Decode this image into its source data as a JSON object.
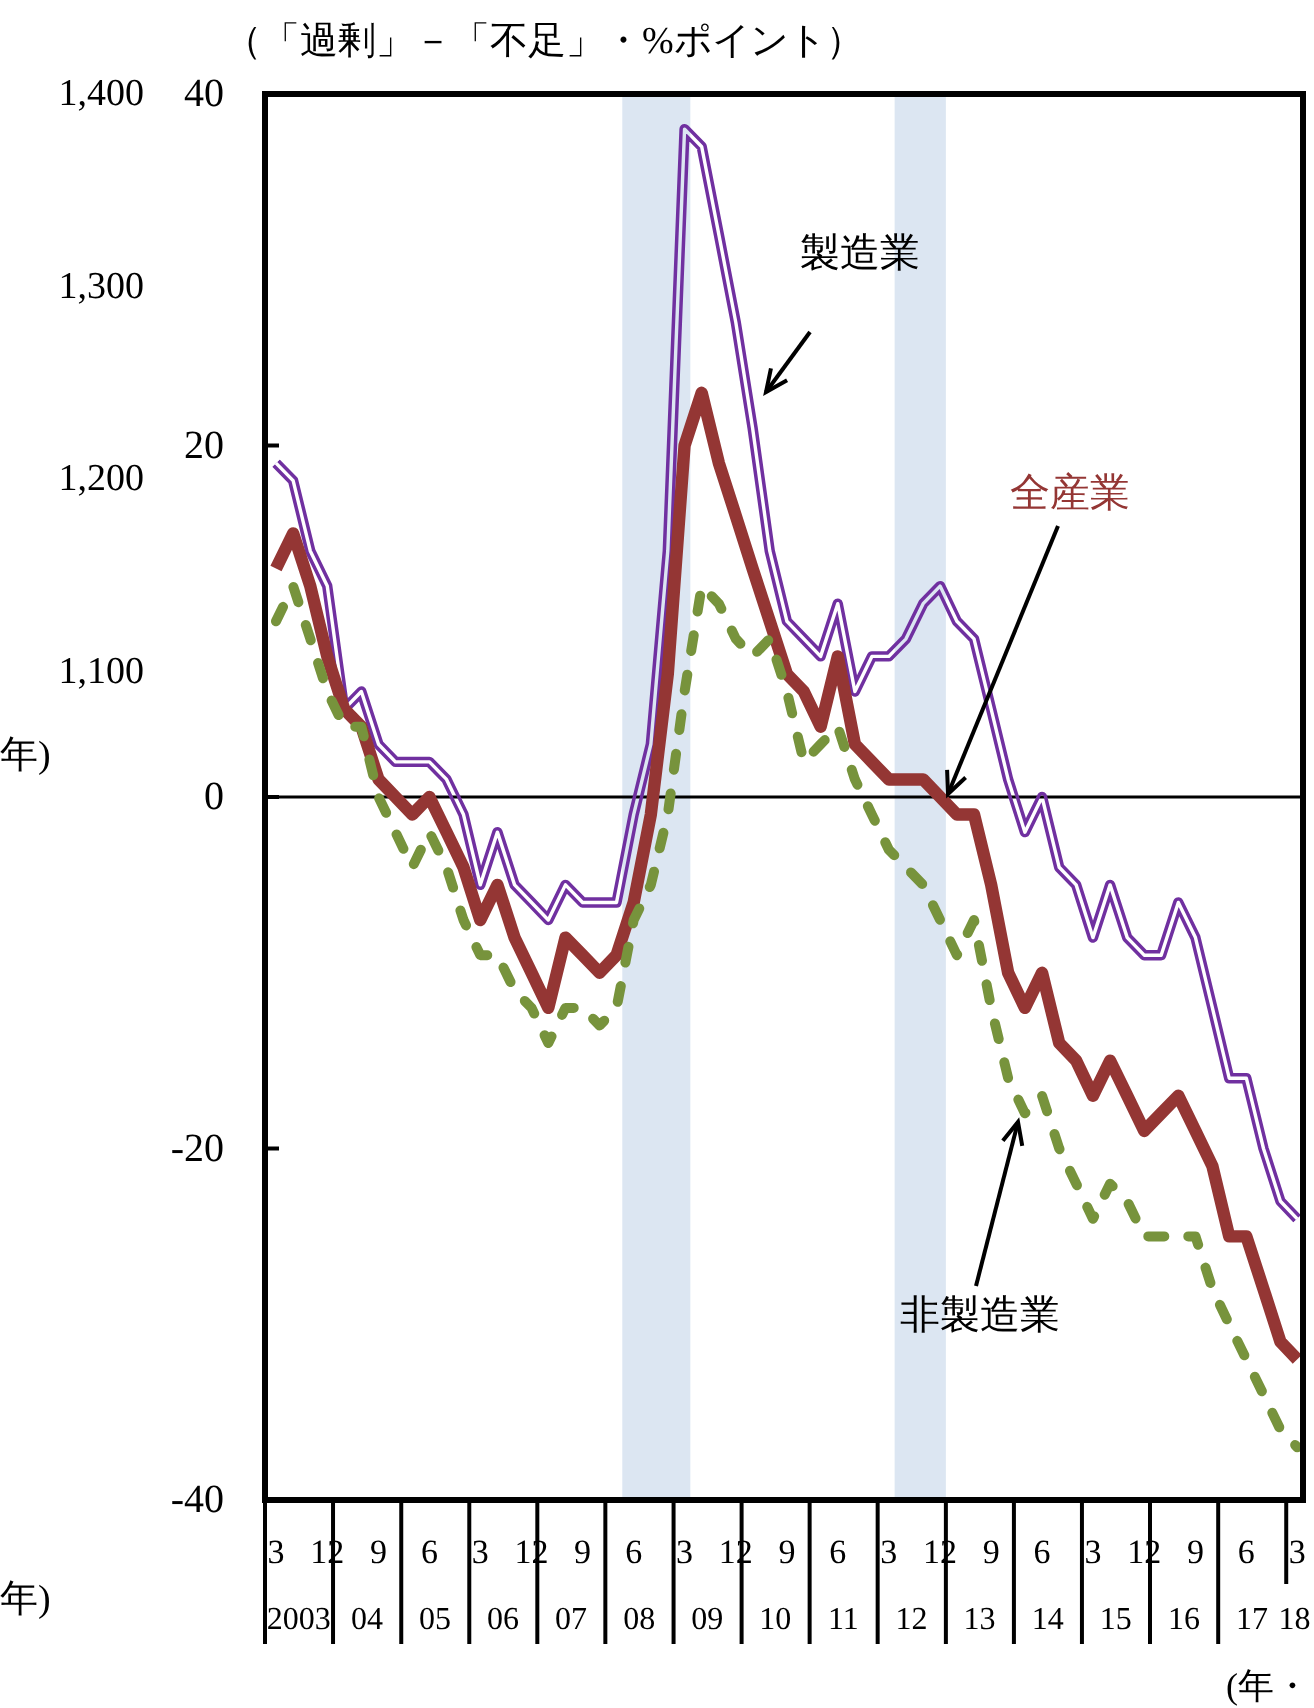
{
  "chart_data": {
    "type": "line",
    "ylabel": "（「過剰」－「不足」・%ポイント）",
    "xlabel": "(年・",
    "annotations": [
      "年)",
      "年)"
    ],
    "x": [
      "2003-03",
      "2003-06",
      "2003-09",
      "2003-12",
      "2004-03",
      "2004-06",
      "2004-09",
      "2004-12",
      "2005-03",
      "2005-06",
      "2005-09",
      "2005-12",
      "2006-03",
      "2006-06",
      "2006-09",
      "2006-12",
      "2007-03",
      "2007-06",
      "2007-09",
      "2007-12",
      "2008-03",
      "2008-06",
      "2008-09",
      "2008-12",
      "2009-03",
      "2009-06",
      "2009-09",
      "2009-12",
      "2010-03",
      "2010-06",
      "2010-09",
      "2010-12",
      "2011-03",
      "2011-06",
      "2011-09",
      "2011-12",
      "2012-03",
      "2012-06",
      "2012-09",
      "2012-12",
      "2013-03",
      "2013-06",
      "2013-09",
      "2013-12",
      "2014-03",
      "2014-06",
      "2014-09",
      "2014-12",
      "2015-03",
      "2015-06",
      "2015-09",
      "2015-12",
      "2016-03",
      "2016-06",
      "2016-09",
      "2016-12",
      "2017-03",
      "2017-06",
      "2017-09",
      "2017-12",
      "2018-03"
    ],
    "xlim": [
      "2003-01",
      "2018-04"
    ],
    "xticks": [
      {
        "value": "2003-03",
        "label": "3"
      },
      {
        "value": "2003-12",
        "label": "12"
      },
      {
        "value": "2004-09",
        "label": "9"
      },
      {
        "value": "2005-06",
        "label": "6"
      },
      {
        "value": "2006-03",
        "label": "3"
      },
      {
        "value": "2006-12",
        "label": "12"
      },
      {
        "value": "2007-09",
        "label": "9"
      },
      {
        "value": "2008-06",
        "label": "6"
      },
      {
        "value": "2009-03",
        "label": "3"
      },
      {
        "value": "2009-12",
        "label": "12"
      },
      {
        "value": "2010-09",
        "label": "9"
      },
      {
        "value": "2011-06",
        "label": "6"
      },
      {
        "value": "2012-03",
        "label": "3"
      },
      {
        "value": "2012-12",
        "label": "12"
      },
      {
        "value": "2013-09",
        "label": "9"
      },
      {
        "value": "2014-06",
        "label": "6"
      },
      {
        "value": "2015-03",
        "label": "3"
      },
      {
        "value": "2015-12",
        "label": "12"
      },
      {
        "value": "2016-09",
        "label": "9"
      },
      {
        "value": "2017-06",
        "label": "6"
      },
      {
        "value": "2018-03",
        "label": "3"
      },
      {
        "value": "2003-01",
        "label": null
      },
      {
        "value": "2004-01",
        "label": null
      },
      {
        "value": "2005-01",
        "label": null
      },
      {
        "value": "2006-01",
        "label": null
      },
      {
        "value": "2007-01",
        "label": null
      },
      {
        "value": "2008-01",
        "label": null
      },
      {
        "value": "2009-01",
        "label": null
      },
      {
        "value": "2010-01",
        "label": null
      },
      {
        "value": "2011-01",
        "label": null
      },
      {
        "value": "2012-01",
        "label": null
      },
      {
        "value": "2013-01",
        "label": null
      },
      {
        "value": "2014-01",
        "label": null
      },
      {
        "value": "2015-01",
        "label": null
      },
      {
        "value": "2016-01",
        "label": null
      },
      {
        "value": "2017-01",
        "label": null
      },
      {
        "value": "2018-01",
        "label": null
      }
    ],
    "x2lim": [
      "2003-01",
      "2018-04"
    ],
    "x2ticks": [
      {
        "value": "2003-07",
        "label": "2003"
      },
      {
        "value": "2004-07",
        "label": "04"
      },
      {
        "value": "2005-07",
        "label": "05"
      },
      {
        "value": "2006-07",
        "label": "06"
      },
      {
        "value": "2007-07",
        "label": "07"
      },
      {
        "value": "2008-07",
        "label": "08"
      },
      {
        "value": "2009-07",
        "label": "09"
      },
      {
        "value": "2010-07",
        "label": "10"
      },
      {
        "value": "2011-07",
        "label": "11"
      },
      {
        "value": "2012-07",
        "label": "12"
      },
      {
        "value": "2013-07",
        "label": "13"
      },
      {
        "value": "2014-07",
        "label": "14"
      },
      {
        "value": "2015-07",
        "label": "15"
      },
      {
        "value": "2016-07",
        "label": "16"
      },
      {
        "value": "2017-07",
        "label": "17"
      },
      {
        "value": "2018-02-15",
        "label": "18"
      }
    ],
    "ylim": [
      -40,
      40
    ],
    "yticks": [
      40,
      20,
      0,
      -20,
      -40
    ],
    "y2lim": [
      670,
      1400
    ],
    "y2ticks": [
      {
        "value": 1100,
        "label": "1,100"
      },
      {
        "value": 1200,
        "label": "1,200"
      },
      {
        "value": 1300,
        "label": "1,300"
      },
      {
        "value": 1400,
        "label": "1,400"
      }
    ],
    "bands": [
      {
        "axis": "x",
        "from": "2008-04",
        "to": "2009-04",
        "color": "#dce6f2"
      },
      {
        "axis": "x",
        "from": "2012-04",
        "to": "2013-01",
        "color": "#dce6f2"
      }
    ],
    "ref_lines": [
      {
        "axis": "y",
        "value": 0,
        "color": "#000000"
      }
    ],
    "series": [
      {
        "name": "製造業",
        "color": "#7030a0",
        "values": [
          19,
          18,
          14,
          12,
          5,
          6,
          3,
          2,
          2,
          2,
          1,
          -1,
          -5,
          -2,
          -5,
          -6,
          -7,
          -5,
          -6,
          -6,
          -6,
          -1,
          3,
          14,
          38,
          37,
          32,
          27,
          21,
          14,
          10,
          9,
          8,
          11,
          6,
          8,
          8,
          9,
          11,
          12,
          10,
          9,
          5,
          1,
          -2,
          0,
          -4,
          -5,
          -8,
          -5,
          -8,
          -9,
          -9,
          -6,
          -8,
          -12,
          -16,
          -16,
          -20,
          -23,
          -24
        ]
      },
      {
        "name": "全産業",
        "color": "#943634",
        "values": [
          13,
          15,
          12,
          8,
          5,
          4,
          1,
          0,
          -1,
          0,
          -2,
          -4,
          -7,
          -5,
          -8,
          -10,
          -12,
          -8,
          -9,
          -10,
          -9,
          -6,
          -1,
          7,
          20,
          23,
          19,
          16,
          13,
          10,
          7,
          6,
          4,
          8,
          3,
          2,
          1,
          1,
          1,
          0,
          -1,
          -1,
          -5,
          -10,
          -12,
          -10,
          -14,
          -15,
          -17,
          -15,
          -17,
          -19,
          -18,
          -17,
          -19,
          -21,
          -25,
          -25,
          -28,
          -31,
          -32
        ]
      },
      {
        "name": "非製造業",
        "color": "#77933c",
        "line_style": "dashed",
        "values": [
          10,
          12,
          9,
          6,
          4,
          4,
          0,
          -2,
          -4,
          -2,
          -4,
          -7,
          -9,
          -9,
          -11,
          -12,
          -14,
          -12,
          -12,
          -13,
          -12,
          -7,
          -5,
          -1,
          6,
          12,
          11,
          9,
          8,
          9,
          6,
          2,
          3,
          4,
          1,
          -1,
          -3,
          -4,
          -5,
          -7,
          -9,
          -7,
          -12,
          -16,
          -18,
          -17,
          -20,
          -22,
          -24,
          -22,
          -23,
          -25,
          -25,
          -25,
          -25,
          -28,
          -30,
          -32,
          -34,
          -36,
          -37
        ]
      }
    ]
  }
}
